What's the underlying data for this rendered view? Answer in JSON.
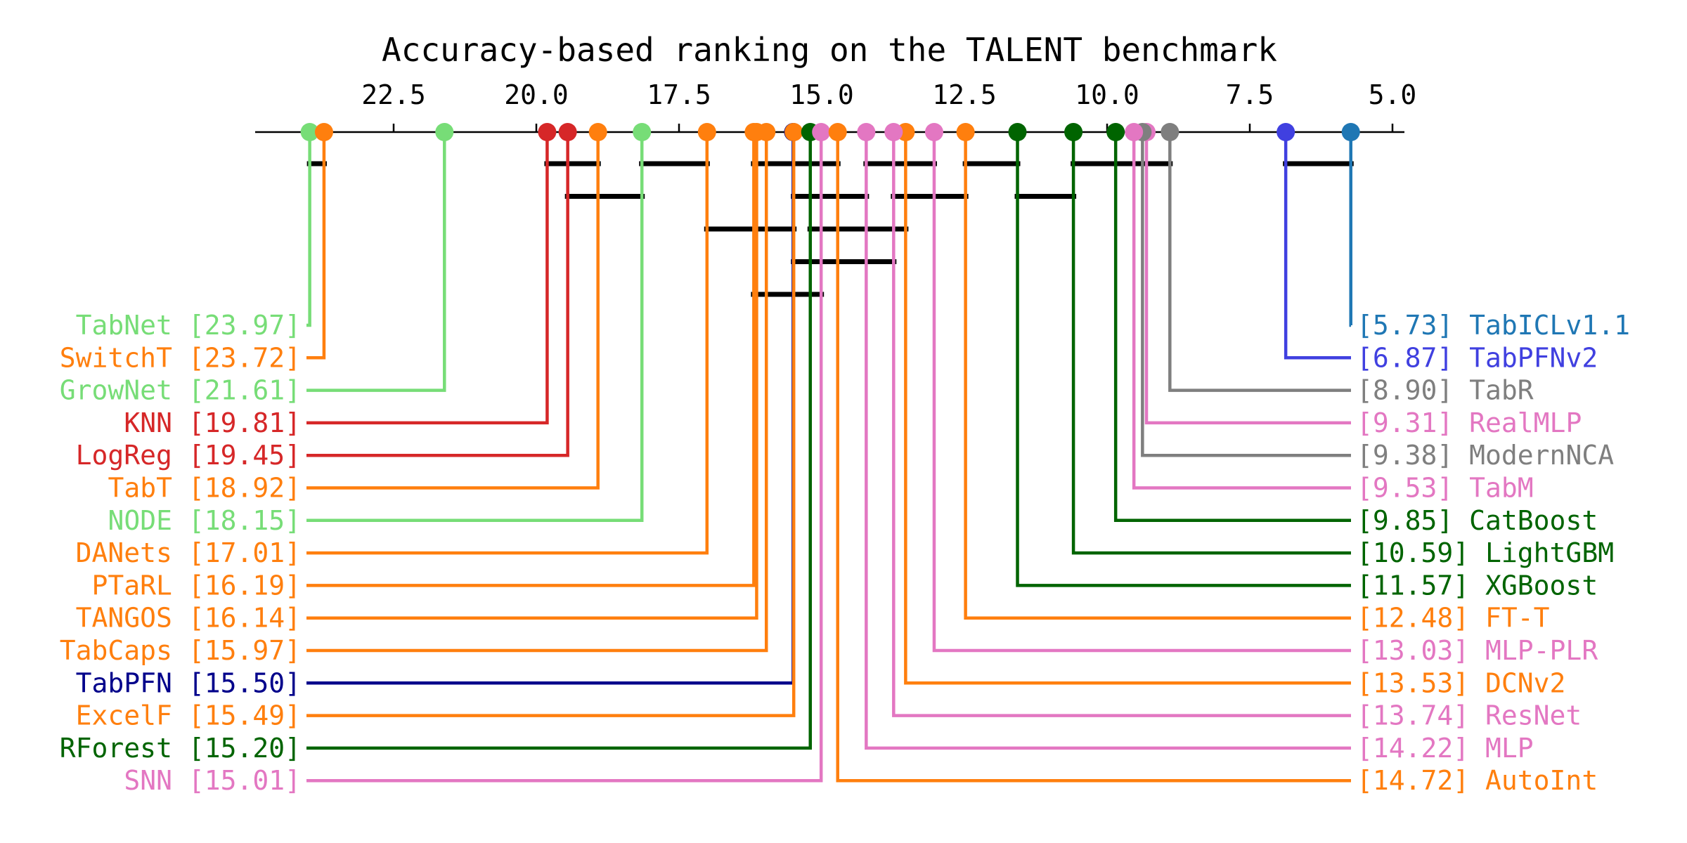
{
  "chart_data": {
    "type": "critical-difference",
    "title": "Accuracy-based ranking on the TALENT benchmark",
    "xlim": [
      25,
      5
    ],
    "ticks": [
      "22.5",
      "20.0",
      "17.5",
      "15.0",
      "12.5",
      "10.0",
      "7.5",
      "5.0"
    ],
    "tick_values": [
      22.5,
      20.0,
      17.5,
      15.0,
      12.5,
      10.0,
      7.5,
      5.0
    ],
    "grid": false,
    "colors": {
      "light_green": "#77dd77",
      "orange": "#ff7f0e",
      "red": "#d62728",
      "navy": "#00008b",
      "dark_green": "#006400",
      "pink": "#e377c2",
      "gray": "#7f7f7f",
      "blue_violet": "#4040e0",
      "steel_blue": "#1f77b4",
      "clique_bar": "#000000"
    },
    "left_methods": [
      {
        "name": "TabNet",
        "rank": 23.97,
        "rank_label": "23.97",
        "color": "#77dd77"
      },
      {
        "name": "SwitchT",
        "rank": 23.72,
        "rank_label": "23.72",
        "color": "#ff7f0e"
      },
      {
        "name": "GrowNet",
        "rank": 21.61,
        "rank_label": "21.61",
        "color": "#77dd77"
      },
      {
        "name": "KNN",
        "rank": 19.81,
        "rank_label": "19.81",
        "color": "#d62728"
      },
      {
        "name": "LogReg",
        "rank": 19.45,
        "rank_label": "19.45",
        "color": "#d62728"
      },
      {
        "name": "TabT",
        "rank": 18.92,
        "rank_label": "18.92",
        "color": "#ff7f0e"
      },
      {
        "name": "NODE",
        "rank": 18.15,
        "rank_label": "18.15",
        "color": "#77dd77"
      },
      {
        "name": "DANets",
        "rank": 17.01,
        "rank_label": "17.01",
        "color": "#ff7f0e"
      },
      {
        "name": "PTaRL",
        "rank": 16.19,
        "rank_label": "16.19",
        "color": "#ff7f0e"
      },
      {
        "name": "TANGOS",
        "rank": 16.14,
        "rank_label": "16.14",
        "color": "#ff7f0e"
      },
      {
        "name": "TabCaps",
        "rank": 15.97,
        "rank_label": "15.97",
        "color": "#ff7f0e"
      },
      {
        "name": "TabPFN",
        "rank": 15.5,
        "rank_label": "15.50",
        "color": "#00008b"
      },
      {
        "name": "ExcelF",
        "rank": 15.49,
        "rank_label": "15.49",
        "color": "#ff7f0e"
      },
      {
        "name": "RForest",
        "rank": 15.2,
        "rank_label": "15.20",
        "color": "#006400"
      },
      {
        "name": "SNN",
        "rank": 15.01,
        "rank_label": "15.01",
        "color": "#e377c2"
      }
    ],
    "right_methods": [
      {
        "name": "TabICLv1.1",
        "rank": 5.73,
        "rank_label": "5.73",
        "color": "#1f77b4"
      },
      {
        "name": "TabPFNv2",
        "rank": 6.87,
        "rank_label": "6.87",
        "color": "#4040e0"
      },
      {
        "name": "TabR",
        "rank": 8.9,
        "rank_label": "8.90",
        "color": "#7f7f7f"
      },
      {
        "name": "RealMLP",
        "rank": 9.31,
        "rank_label": "9.31",
        "color": "#e377c2"
      },
      {
        "name": "ModernNCA",
        "rank": 9.38,
        "rank_label": "9.38",
        "color": "#7f7f7f"
      },
      {
        "name": "TabM",
        "rank": 9.53,
        "rank_label": "9.53",
        "color": "#e377c2"
      },
      {
        "name": "CatBoost",
        "rank": 9.85,
        "rank_label": "9.85",
        "color": "#006400"
      },
      {
        "name": "LightGBM",
        "rank": 10.59,
        "rank_label": "10.59",
        "color": "#006400"
      },
      {
        "name": "XGBoost",
        "rank": 11.57,
        "rank_label": "11.57",
        "color": "#006400"
      },
      {
        "name": "FT-T",
        "rank": 12.48,
        "rank_label": "12.48",
        "color": "#ff7f0e"
      },
      {
        "name": "MLP-PLR",
        "rank": 13.03,
        "rank_label": "13.03",
        "color": "#e377c2"
      },
      {
        "name": "DCNv2",
        "rank": 13.53,
        "rank_label": "13.53",
        "color": "#ff7f0e"
      },
      {
        "name": "ResNet",
        "rank": 13.74,
        "rank_label": "13.74",
        "color": "#e377c2"
      },
      {
        "name": "MLP",
        "rank": 14.22,
        "rank_label": "14.22",
        "color": "#e377c2"
      },
      {
        "name": "AutoInt",
        "rank": 14.72,
        "rank_label": "14.72",
        "color": "#ff7f0e"
      }
    ],
    "cliques": [
      {
        "from": 23.97,
        "to": 23.72,
        "level": 0
      },
      {
        "from": 19.81,
        "to": 18.92,
        "level": 0
      },
      {
        "from": 18.15,
        "to": 17.01,
        "level": 0
      },
      {
        "from": 16.19,
        "to": 14.72,
        "level": 0
      },
      {
        "from": 14.22,
        "to": 13.03,
        "level": 0
      },
      {
        "from": 12.48,
        "to": 11.57,
        "level": 0
      },
      {
        "from": 10.59,
        "to": 8.9,
        "level": 0
      },
      {
        "from": 6.87,
        "to": 5.73,
        "level": 0
      },
      {
        "from": 19.45,
        "to": 18.15,
        "level": 1
      },
      {
        "from": 15.49,
        "to": 14.22,
        "level": 1
      },
      {
        "from": 13.74,
        "to": 12.48,
        "level": 1
      },
      {
        "from": 11.57,
        "to": 10.59,
        "level": 1
      },
      {
        "from": 17.01,
        "to": 15.49,
        "level": 2
      },
      {
        "from": 15.2,
        "to": 13.53,
        "level": 2
      },
      {
        "from": 15.49,
        "to": 13.74,
        "level": 3
      },
      {
        "from": 16.19,
        "to": 15.01,
        "level": 4
      }
    ]
  }
}
